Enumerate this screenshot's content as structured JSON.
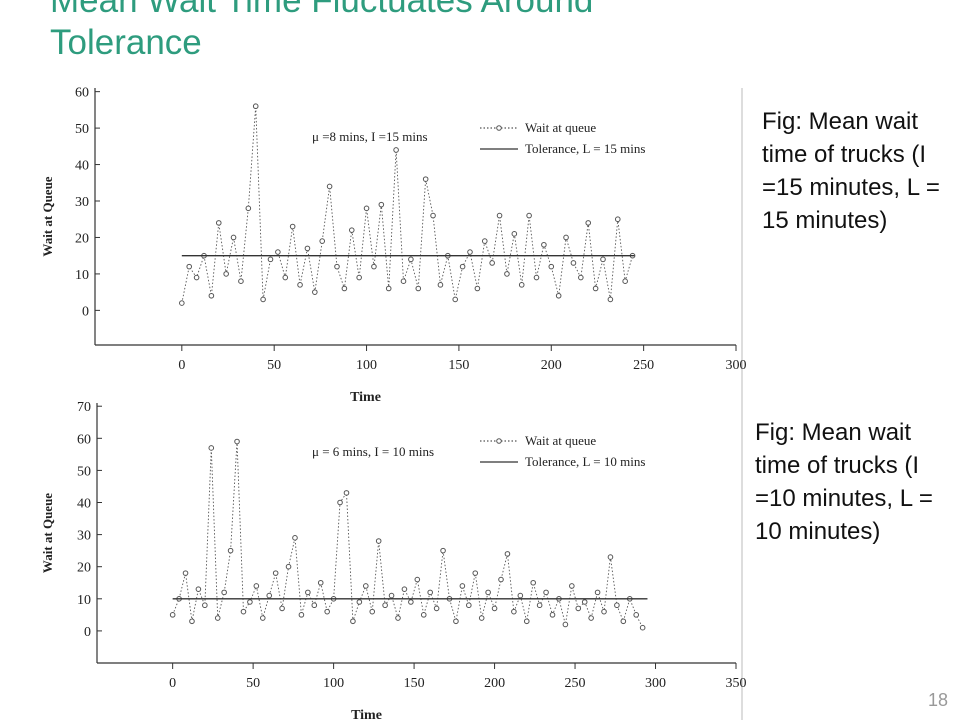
{
  "title": "Mean Wait Time Fluctuates Around Tolerance",
  "captions": [
    "Fig: Mean wait time of trucks (I =15 minutes, L = 15 minutes)",
    "Fig: Mean wait time of trucks (I =10 minutes, L = 10 minutes)"
  ],
  "page_number": "18",
  "chart_data": [
    {
      "type": "line",
      "annotation": "μ =8 mins, I =15 mins",
      "xlabel": "Time",
      "ylabel": "Wait at Queue",
      "xlim": [
        -47,
        300
      ],
      "ylim": [
        -9.5,
        61
      ],
      "xticks": [
        0,
        50,
        100,
        150,
        200,
        250,
        300
      ],
      "yticks": [
        0,
        10,
        20,
        30,
        40,
        50,
        60
      ],
      "series": [
        {
          "name": "Wait at queue",
          "color": "#555555",
          "line_style": "dotted",
          "markers": true,
          "x": [
            0,
            4,
            8,
            12,
            16,
            20,
            24,
            28,
            32,
            36,
            40,
            44,
            48,
            52,
            56,
            60,
            64,
            68,
            72,
            76,
            80,
            84,
            88,
            92,
            96,
            100,
            104,
            108,
            112,
            116,
            120,
            124,
            128,
            132,
            136,
            140,
            144,
            148,
            152,
            156,
            160,
            164,
            168,
            172,
            176,
            180,
            184,
            188,
            192,
            196,
            200,
            204,
            208,
            212,
            216,
            220,
            224,
            228,
            232,
            236,
            240,
            244
          ],
          "values": [
            2,
            12,
            9,
            15,
            4,
            24,
            10,
            20,
            8,
            28,
            56,
            3,
            14,
            16,
            9,
            23,
            7,
            17,
            5,
            19,
            34,
            12,
            6,
            22,
            9,
            28,
            12,
            29,
            6,
            44,
            8,
            14,
            6,
            36,
            26,
            7,
            15,
            3,
            12,
            16,
            6,
            19,
            13,
            26,
            10,
            21,
            7,
            26,
            9,
            18,
            12,
            4,
            20,
            13,
            9,
            24,
            6,
            14,
            3,
            25,
            8,
            15
          ]
        },
        {
          "name": "Tolerance, L = 15 mins",
          "color": "#333333",
          "line_style": "solid",
          "markers": false,
          "x": [
            0,
            245
          ],
          "values": [
            15,
            15
          ]
        }
      ]
    },
    {
      "type": "line",
      "annotation": "μ = 6 mins, I = 10 mins",
      "xlabel": "Time",
      "ylabel": "Wait at Queue",
      "xlim": [
        -47,
        350
      ],
      "ylim": [
        -10,
        71
      ],
      "xticks": [
        0,
        50,
        100,
        150,
        200,
        250,
        300,
        350
      ],
      "yticks": [
        0,
        10,
        20,
        30,
        40,
        50,
        60,
        70
      ],
      "series": [
        {
          "name": "Wait at queue",
          "color": "#555555",
          "line_style": "dotted",
          "markers": true,
          "x": [
            0,
            4,
            8,
            12,
            16,
            20,
            24,
            28,
            32,
            36,
            40,
            44,
            48,
            52,
            56,
            60,
            64,
            68,
            72,
            76,
            80,
            84,
            88,
            92,
            96,
            100,
            104,
            108,
            112,
            116,
            120,
            124,
            128,
            132,
            136,
            140,
            144,
            148,
            152,
            156,
            160,
            164,
            168,
            172,
            176,
            180,
            184,
            188,
            192,
            196,
            200,
            204,
            208,
            212,
            216,
            220,
            224,
            228,
            232,
            236,
            240,
            244,
            248,
            252,
            256,
            260,
            264,
            268,
            272,
            276,
            280,
            284,
            288,
            292
          ],
          "values": [
            5,
            10,
            18,
            3,
            13,
            8,
            57,
            4,
            12,
            25,
            59,
            6,
            9,
            14,
            4,
            11,
            18,
            7,
            20,
            29,
            5,
            12,
            8,
            15,
            6,
            10,
            40,
            43,
            3,
            9,
            14,
            6,
            28,
            8,
            11,
            4,
            13,
            9,
            16,
            5,
            12,
            7,
            25,
            10,
            3,
            14,
            8,
            18,
            4,
            12,
            7,
            16,
            24,
            6,
            11,
            3,
            15,
            8,
            12,
            5,
            10,
            2,
            14,
            7,
            9,
            4,
            12,
            6,
            23,
            8,
            3,
            10,
            5,
            1
          ]
        },
        {
          "name": "Tolerance, L = 10 mins",
          "color": "#333333",
          "line_style": "solid",
          "markers": false,
          "x": [
            0,
            295
          ],
          "values": [
            10,
            10
          ]
        }
      ]
    }
  ]
}
